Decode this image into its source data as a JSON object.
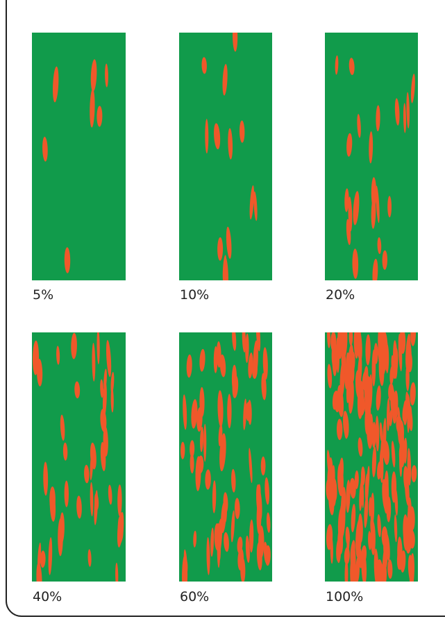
{
  "panels": [
    {
      "label": "5%"
    },
    {
      "label": "10%"
    },
    {
      "label": "20%"
    },
    {
      "label": "40%"
    },
    {
      "label": "60%"
    },
    {
      "label": "100%"
    }
  ]
}
